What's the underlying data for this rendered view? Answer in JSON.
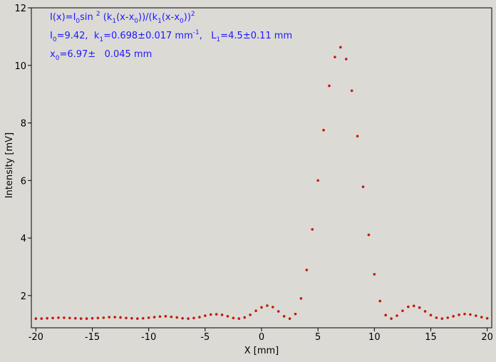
{
  "chart_data": {
    "type": "scatter",
    "annotations": [
      [
        "I(x)=I",
        "0",
        "sin ",
        "2",
        " (k",
        "1",
        "(x-x",
        "0",
        "))/(k",
        "1",
        "(x-x",
        "0",
        "))",
        "2"
      ],
      [
        "I",
        "0",
        "=9.42,  k",
        "1",
        "=0.698±0.017 mm",
        "-1",
        ",   L",
        "1",
        "=4.5±0.11 mm"
      ],
      [
        "x",
        "0",
        "=6.97±   0.045 mm"
      ]
    ],
    "annotation_color": "#1a1aff",
    "xlabel": "X [mm]",
    "ylabel": "Intensity [mV]",
    "xlim": [
      -20.4,
      20.4
    ],
    "ylim": [
      0.88,
      12.0
    ],
    "xticks": [
      -20,
      -15,
      -10,
      -5,
      0,
      5,
      10,
      15,
      20
    ],
    "yticks": [
      2,
      4,
      6,
      8,
      10,
      12
    ],
    "color": "#c41a00",
    "x": [
      -20,
      -19.5,
      -19,
      -18.5,
      -18,
      -17.5,
      -17,
      -16.5,
      -16,
      -15.5,
      -15,
      -14.5,
      -14,
      -13.5,
      -13,
      -12.5,
      -12,
      -11.5,
      -11,
      -10.5,
      -10,
      -9.5,
      -9,
      -8.5,
      -8,
      -7.5,
      -7,
      -6.5,
      -6,
      -5.5,
      -5,
      -4.5,
      -4,
      -3.5,
      -3,
      -2.5,
      -2,
      -1.5,
      -1,
      -0.5,
      0,
      0.5,
      1,
      1.5,
      2,
      2.5,
      3,
      3.5,
      4,
      4.5,
      5,
      5.5,
      6,
      6.5,
      7,
      7.5,
      8,
      8.5,
      9,
      9.5,
      10,
      10.5,
      11,
      11.5,
      12,
      12.5,
      13,
      13.5,
      14,
      14.5,
      15,
      15.5,
      16,
      16.5,
      17,
      17.5,
      18,
      18.5,
      19,
      19.5,
      20
    ],
    "values": [
      1.2,
      1.2,
      1.21,
      1.22,
      1.23,
      1.23,
      1.22,
      1.21,
      1.2,
      1.2,
      1.21,
      1.22,
      1.23,
      1.25,
      1.25,
      1.24,
      1.22,
      1.21,
      1.2,
      1.21,
      1.23,
      1.25,
      1.27,
      1.28,
      1.26,
      1.24,
      1.21,
      1.2,
      1.22,
      1.25,
      1.3,
      1.34,
      1.35,
      1.33,
      1.28,
      1.22,
      1.2,
      1.24,
      1.33,
      1.47,
      1.59,
      1.65,
      1.6,
      1.45,
      1.28,
      1.2,
      1.36,
      1.9,
      2.89,
      4.3,
      6.0,
      7.75,
      9.29,
      10.29,
      10.63,
      10.22,
      9.12,
      7.54,
      5.78,
      4.11,
      2.74,
      1.81,
      1.32,
      1.2,
      1.3,
      1.47,
      1.61,
      1.64,
      1.58,
      1.45,
      1.32,
      1.23,
      1.2,
      1.23,
      1.28,
      1.33,
      1.36,
      1.34,
      1.3,
      1.25,
      1.21
    ]
  }
}
